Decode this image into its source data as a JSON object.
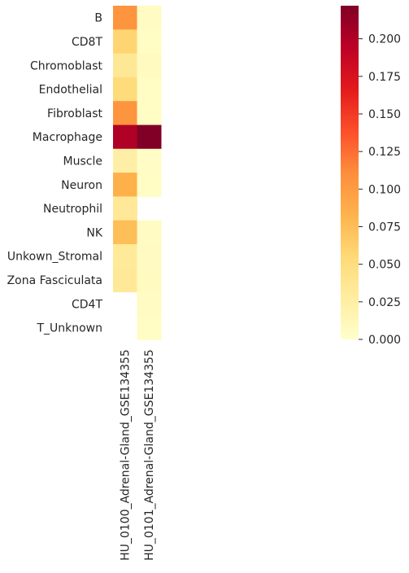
{
  "chart_data": {
    "type": "heatmap",
    "title": "",
    "xlabel": "",
    "ylabel": "",
    "columns": [
      "HU_0100_Adrenal-Gland_GSE134355",
      "HU_0101_Adrenal-Gland_GSE134355"
    ],
    "rows": [
      "B",
      "CD8T",
      "Chromoblast",
      "Endothelial",
      "Fibroblast",
      "Macrophage",
      "Muscle",
      "Neuron",
      "Neutrophil",
      "NK",
      "Unkown_Stromal",
      "Zona Fasciculata",
      "CD4T",
      "T_Unknown"
    ],
    "values": [
      [
        0.105,
        0.006
      ],
      [
        0.058,
        0.005
      ],
      [
        0.035,
        0.008
      ],
      [
        0.052,
        0.005
      ],
      [
        0.105,
        0.005
      ],
      [
        0.2,
        0.222
      ],
      [
        0.024,
        0.004
      ],
      [
        0.085,
        0.005
      ],
      [
        0.033,
        null
      ],
      [
        0.075,
        0.006
      ],
      [
        0.032,
        0.007
      ],
      [
        0.033,
        0.008
      ],
      [
        null,
        0.006
      ],
      [
        null,
        0.005
      ]
    ],
    "colorbar": {
      "colormap": "YlOrRd",
      "range": [
        0,
        0.222
      ],
      "ticks": [
        0.0,
        0.025,
        0.05,
        0.075,
        0.1,
        0.125,
        0.15,
        0.175,
        0.2
      ],
      "tick_labels": [
        "0.000",
        "0.025",
        "0.050",
        "0.075",
        "0.100",
        "0.125",
        "0.150",
        "0.175",
        "0.200"
      ]
    }
  }
}
